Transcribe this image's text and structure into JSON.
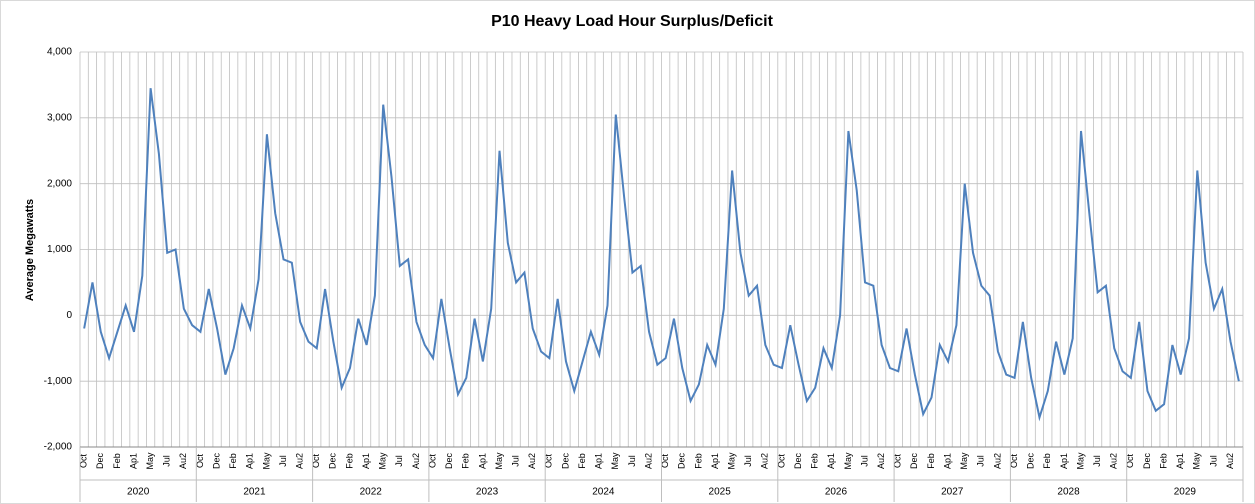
{
  "chart_data": {
    "type": "line",
    "title": "P10 Heavy Load Hour Surplus/Deficit",
    "y_label": "Average Megawatts",
    "categories": [
      "Oct",
      null,
      "Dec",
      null,
      "Feb",
      null,
      "Ap1",
      null,
      "May",
      null,
      "Jul",
      null,
      "Au2",
      null,
      "Oct",
      null,
      "Dec",
      null,
      "Feb",
      null,
      "Ap1",
      null,
      "May",
      null,
      "Jul",
      null,
      "Au2",
      null,
      "Oct",
      null,
      "Dec",
      null,
      "Feb",
      null,
      "Ap1",
      null,
      "May",
      null,
      "Jul",
      null,
      "Au2",
      null,
      "Oct",
      null,
      "Dec",
      null,
      "Feb",
      null,
      "Ap1",
      null,
      "May",
      null,
      "Jul",
      null,
      "Au2",
      null,
      "Oct",
      null,
      "Dec",
      null,
      "Feb",
      null,
      "Ap1",
      null,
      "May",
      null,
      "Jul",
      null,
      "Au2",
      null,
      "Oct",
      null,
      "Dec",
      null,
      "Feb",
      null,
      "Ap1",
      null,
      "May",
      null,
      "Jul",
      null,
      "Au2",
      null,
      "Oct",
      null,
      "Dec",
      null,
      "Feb",
      null,
      "Ap1",
      null,
      "May",
      null,
      "Jul",
      null,
      "Au2",
      null,
      "Oct",
      null,
      "Dec",
      null,
      "Feb",
      null,
      "Ap1",
      null,
      "May",
      null,
      "Jul",
      null,
      "Au2",
      null,
      "Oct",
      null,
      "Dec",
      null,
      "Feb",
      null,
      "Ap1",
      null,
      "May",
      null,
      "Jul",
      null,
      "Au2",
      null,
      "Oct",
      null,
      "Dec",
      null,
      "Feb",
      null,
      "Ap1",
      null,
      "May",
      null,
      "Jul",
      null,
      "Au2",
      null
    ],
    "groups": [
      "2020",
      "2021",
      "2022",
      "2023",
      "2024",
      "2025",
      "2026",
      "2027",
      "2028",
      "2029"
    ],
    "values": [
      -200,
      500,
      -250,
      -650,
      -250,
      150,
      -250,
      600,
      3450,
      2450,
      950,
      1000,
      100,
      -150,
      -250,
      400,
      -200,
      -900,
      -500,
      150,
      -200,
      550,
      2750,
      1550,
      850,
      800,
      -100,
      -400,
      -500,
      400,
      -400,
      -1100,
      -800,
      -50,
      -450,
      300,
      3200,
      2100,
      750,
      850,
      -100,
      -450,
      -650,
      250,
      -500,
      -1200,
      -950,
      -50,
      -700,
      100,
      2500,
      1100,
      500,
      650,
      -200,
      -550,
      -650,
      250,
      -700,
      -1150,
      -700,
      -250,
      -600,
      150,
      3050,
      1800,
      650,
      750,
      -250,
      -750,
      -650,
      -50,
      -800,
      -1300,
      -1050,
      -450,
      -750,
      100,
      2200,
      950,
      300,
      450,
      -450,
      -750,
      -800,
      -150,
      -750,
      -1300,
      -1100,
      -500,
      -800,
      0,
      2800,
      1900,
      500,
      450,
      -450,
      -800,
      -850,
      -200,
      -900,
      -1500,
      -1250,
      -450,
      -700,
      -150,
      2000,
      950,
      450,
      300,
      -550,
      -900,
      -950,
      -100,
      -950,
      -1550,
      -1150,
      -400,
      -900,
      -350,
      2800,
      1550,
      350,
      450,
      -500,
      -850,
      -950,
      -100,
      -1150,
      -1450,
      -1350,
      -450,
      -900,
      -350,
      2200,
      800,
      100,
      400,
      -400,
      -1000
    ],
    "color": "#4f81bd",
    "ylim": [
      -2000,
      4000
    ],
    "yticks": [
      {
        "value": -2000,
        "label": "-2,000"
      },
      {
        "value": -1000,
        "label": "-1,000"
      },
      0,
      {
        "value": 1000,
        "label": "1,000"
      },
      {
        "value": 2000,
        "label": "2,000"
      },
      {
        "value": 3000,
        "label": "3,000"
      },
      {
        "value": 4000,
        "label": "4,000"
      }
    ],
    "grid": true
  }
}
